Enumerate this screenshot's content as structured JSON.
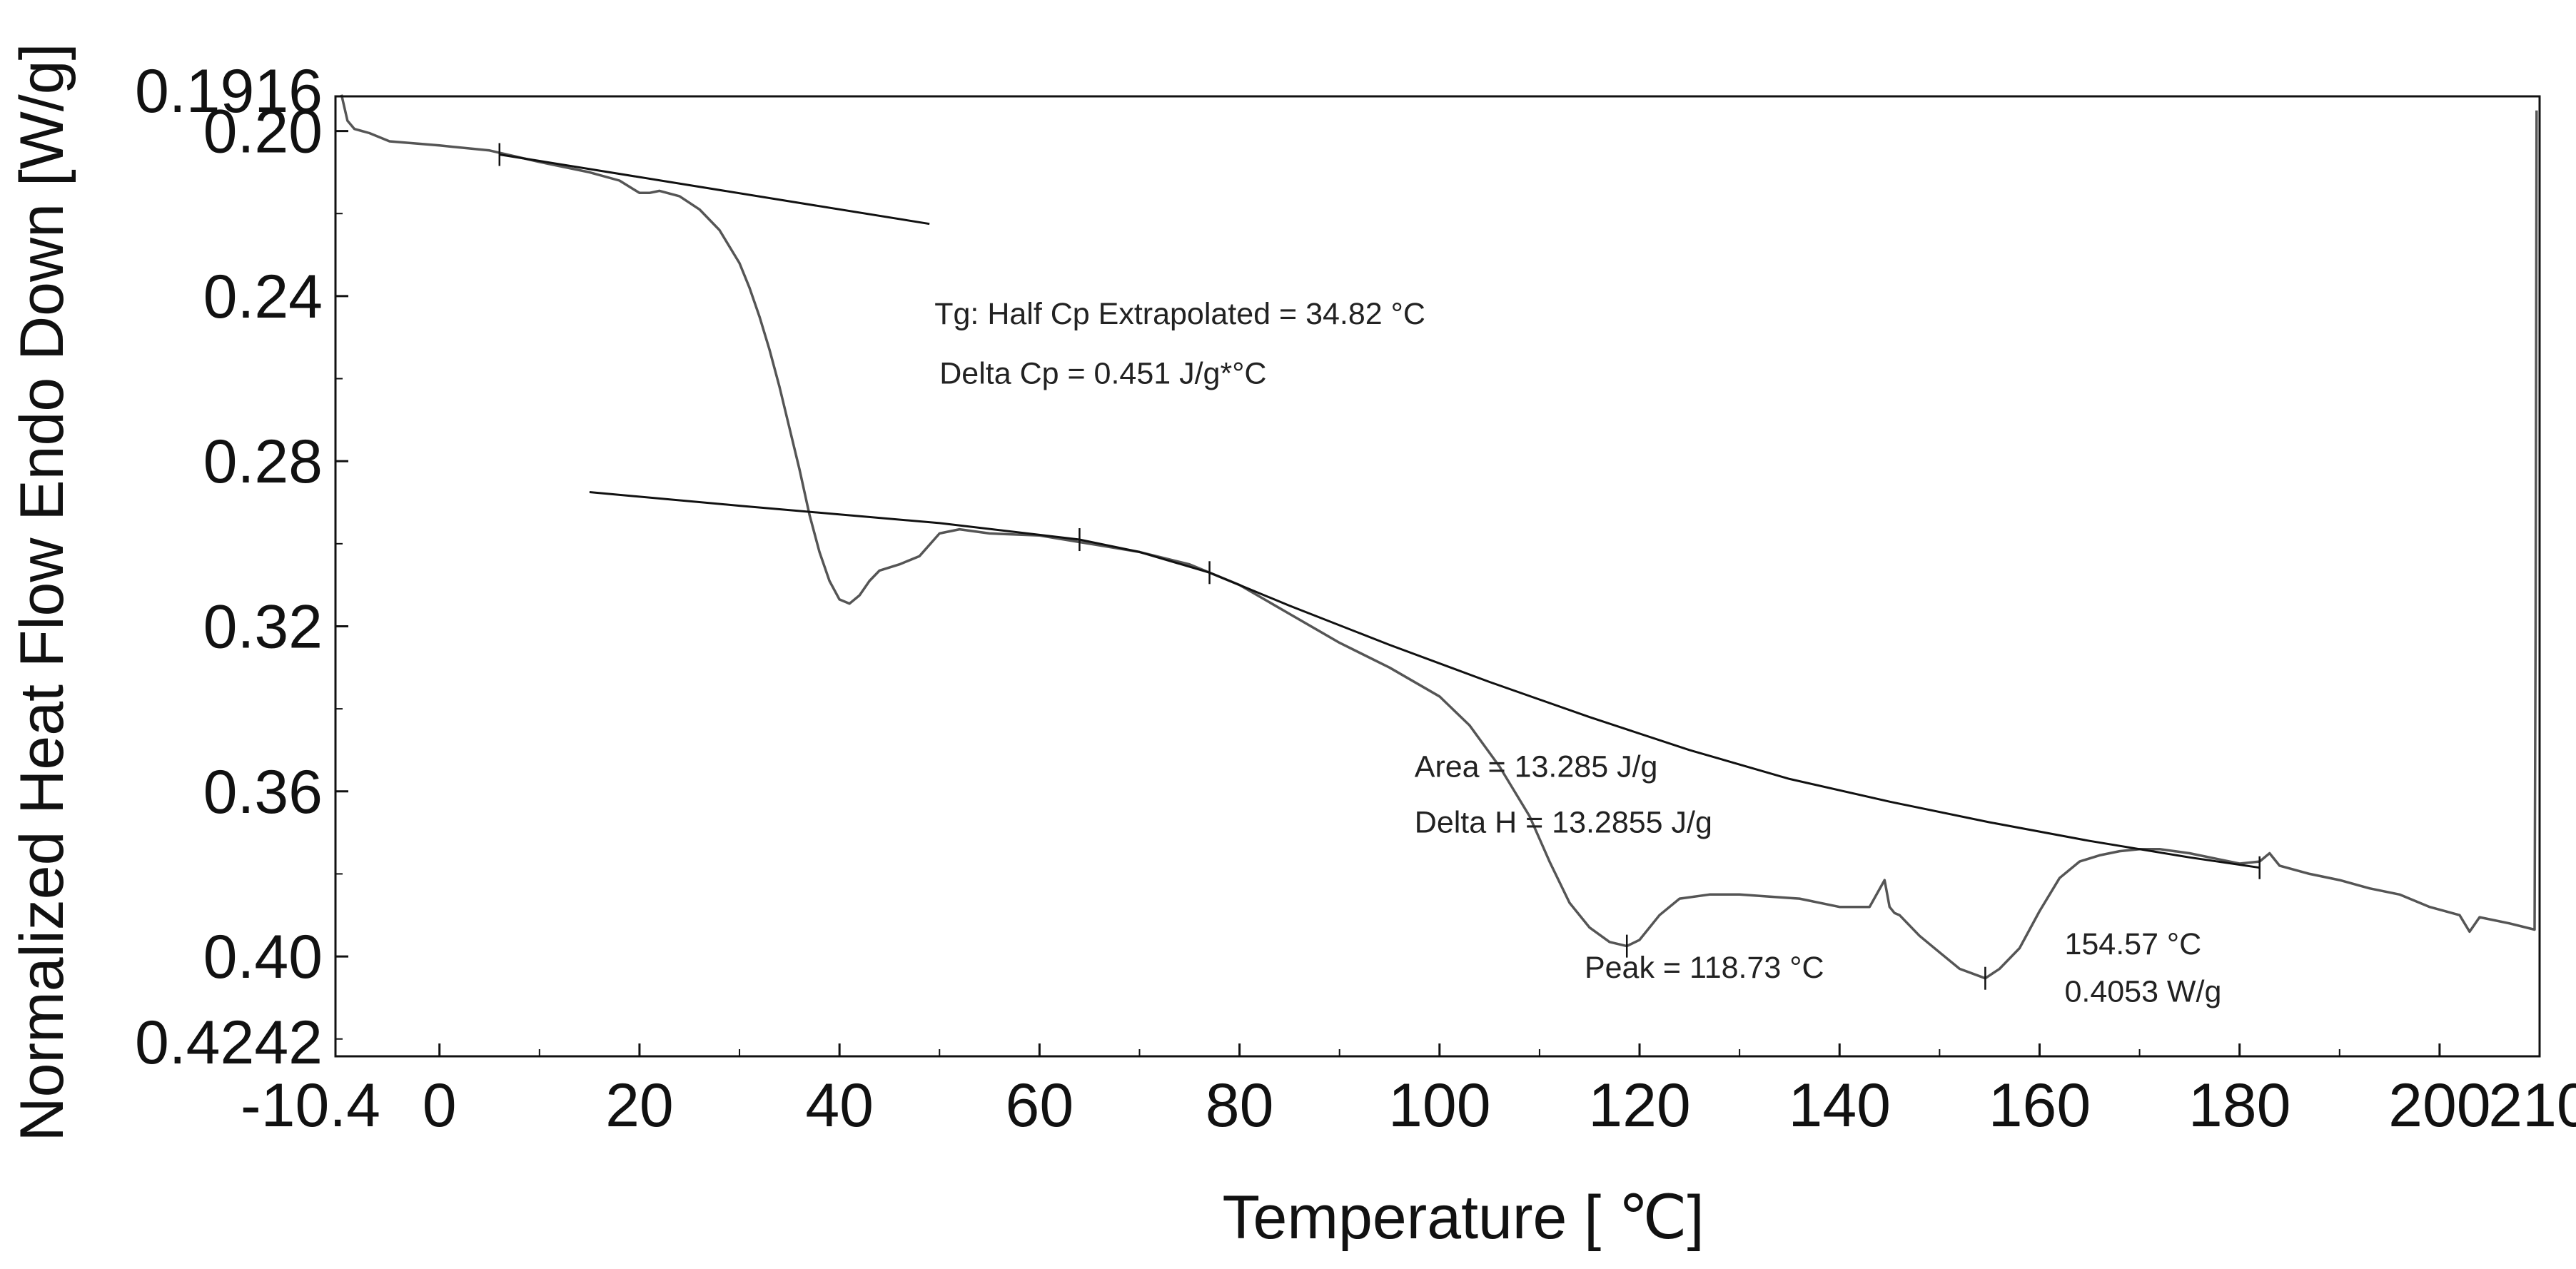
{
  "chart_data": {
    "type": "line",
    "title": "",
    "xlabel": "Temperature [ ℃]",
    "ylabel": "Normalized Heat Flow Endo Down [W/g]",
    "xlim": [
      -10.4,
      210
    ],
    "ylim": [
      0.1916,
      0.4242
    ],
    "y_inverted": true,
    "grid": false,
    "x_ticks": [
      -10.4,
      0,
      20,
      40,
      60,
      80,
      100,
      120,
      140,
      160,
      180,
      200,
      210
    ],
    "x_tick_labels": [
      "-10.4",
      "0",
      "20",
      "40",
      "60",
      "80",
      "100",
      "120",
      "140",
      "160",
      "180",
      "200",
      "210"
    ],
    "y_ticks": [
      0.1916,
      0.2,
      0.24,
      0.28,
      0.32,
      0.36,
      0.4,
      0.4242
    ],
    "y_tick_labels": [
      "0.1916",
      "0.20",
      "0.24",
      "0.28",
      "0.32",
      "0.36",
      "0.40",
      "0.4242"
    ],
    "series": [
      {
        "name": "Heat flow",
        "color": "#555555",
        "x": [
          -9.8,
          -9.2,
          -8.5,
          -7,
          -5,
          0,
          5,
          10,
          15,
          18,
          20,
          21,
          22,
          24,
          26,
          28,
          30,
          31,
          32,
          33,
          34,
          35,
          36,
          37,
          38,
          39,
          40,
          41,
          42,
          43,
          44,
          46,
          48,
          50,
          52,
          55,
          60,
          65,
          70,
          75,
          80,
          85,
          90,
          95,
          100,
          103,
          106,
          109,
          111,
          113,
          115,
          117,
          118.73,
          120,
          122,
          124,
          127,
          130,
          133,
          136,
          140,
          143,
          144.5,
          145,
          145.5,
          146,
          148,
          150,
          152,
          154.57,
          156,
          158,
          160,
          162,
          164,
          166,
          168,
          170,
          172,
          175,
          178,
          180,
          182,
          183,
          184,
          187,
          190,
          193,
          196,
          199,
          202,
          203,
          204,
          207,
          209.5,
          209.6,
          209.7
        ],
        "y": [
          0.1912,
          0.1975,
          0.1995,
          0.2005,
          0.2025,
          0.2035,
          0.2047,
          0.2075,
          0.21,
          0.212,
          0.215,
          0.215,
          0.2145,
          0.2158,
          0.219,
          0.224,
          0.232,
          0.238,
          0.245,
          0.253,
          0.262,
          0.272,
          0.282,
          0.293,
          0.302,
          0.309,
          0.3135,
          0.3145,
          0.3125,
          0.309,
          0.3065,
          0.305,
          0.303,
          0.2975,
          0.2965,
          0.2975,
          0.298,
          0.3,
          0.302,
          0.305,
          0.31,
          0.317,
          0.324,
          0.33,
          0.337,
          0.344,
          0.354,
          0.366,
          0.377,
          0.387,
          0.393,
          0.3965,
          0.3975,
          0.396,
          0.39,
          0.386,
          0.385,
          0.385,
          0.3855,
          0.386,
          0.388,
          0.388,
          0.3815,
          0.388,
          0.3895,
          0.39,
          0.395,
          0.399,
          0.403,
          0.4053,
          0.403,
          0.398,
          0.389,
          0.381,
          0.377,
          0.3755,
          0.3745,
          0.374,
          0.374,
          0.375,
          0.3765,
          0.3775,
          0.377,
          0.375,
          0.378,
          0.38,
          0.3815,
          0.3835,
          0.385,
          0.388,
          0.39,
          0.394,
          0.3905,
          0.392,
          0.3935,
          0.32,
          0.195
        ]
      },
      {
        "name": "Glass transition baseline",
        "color": "#111111",
        "x": [
          6,
          49
        ],
        "y": [
          0.2057,
          0.2225
        ]
      },
      {
        "name": "Melting baseline",
        "color": "#111111",
        "x": [
          15,
          30,
          50,
          64,
          70,
          77,
          85,
          95,
          105,
          115,
          125,
          135,
          145,
          155,
          165,
          175,
          182
        ],
        "y": [
          0.2875,
          0.2908,
          0.295,
          0.299,
          0.302,
          0.307,
          0.315,
          0.3245,
          0.3335,
          0.342,
          0.35,
          0.357,
          0.3625,
          0.3675,
          0.372,
          0.376,
          0.3785
        ]
      }
    ],
    "tick_marks": [
      {
        "x": 6,
        "y": 0.2057
      },
      {
        "x": 64,
        "y": 0.299
      },
      {
        "x": 77,
        "y": 0.307
      },
      {
        "x": 118.73,
        "y": 0.3975
      },
      {
        "x": 154.57,
        "y": 0.4053
      },
      {
        "x": 182,
        "y": 0.3785
      }
    ],
    "annotations": [
      {
        "text": "Tg: Half Cp Extrapolated = 34.82 °C",
        "x": 49.5,
        "y": 0.2468
      },
      {
        "text": "Delta Cp = 0.451 J/g*°C",
        "x": 50,
        "y": 0.2612
      },
      {
        "text": "Area = 13.285 J/g",
        "x": 97.5,
        "y": 0.3565
      },
      {
        "text": "Delta H = 13.2855 J/g",
        "x": 97.5,
        "y": 0.37
      },
      {
        "text": "Peak = 118.73 °C",
        "x": 114.5,
        "y": 0.4052
      },
      {
        "text": "154.57 °C",
        "x": 162.5,
        "y": 0.3995
      },
      {
        "text": "0.4053 W/g",
        "x": 162.5,
        "y": 0.411
      }
    ]
  }
}
